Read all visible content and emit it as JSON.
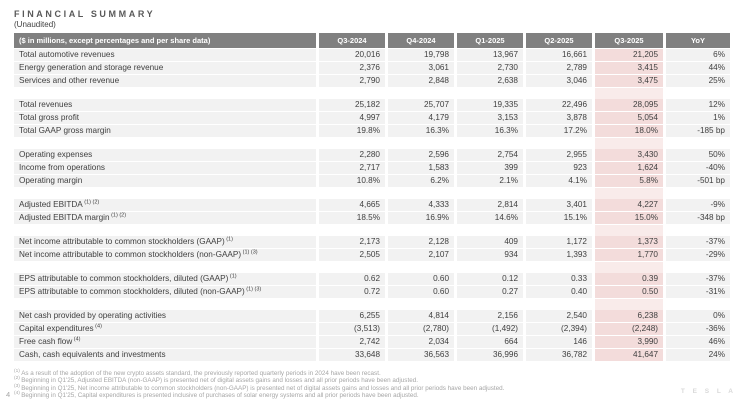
{
  "header": {
    "title": "FINANCIAL SUMMARY",
    "subtitle": "(Unaudited)"
  },
  "table": {
    "label_header": "($ in millions, except percentages and per share data)",
    "columns": [
      "Q3-2024",
      "Q4-2024",
      "Q1-2025",
      "Q2-2025",
      "Q3-2025",
      "YoY"
    ],
    "highlight_column": "Q3-2025",
    "sections": [
      {
        "rows": [
          {
            "label": "Total automotive revenues",
            "sup": "",
            "values": [
              "20,016",
              "19,798",
              "13,967",
              "16,661",
              "21,205",
              "6%"
            ]
          },
          {
            "label": "Energy generation and storage revenue",
            "sup": "",
            "values": [
              "2,376",
              "3,061",
              "2,730",
              "2,789",
              "3,415",
              "44%"
            ]
          },
          {
            "label": "Services and other revenue",
            "sup": "",
            "values": [
              "2,790",
              "2,848",
              "2,638",
              "3,046",
              "3,475",
              "25%"
            ]
          }
        ]
      },
      {
        "rows": [
          {
            "label": "Total revenues",
            "sup": "",
            "values": [
              "25,182",
              "25,707",
              "19,335",
              "22,496",
              "28,095",
              "12%"
            ]
          },
          {
            "label": "Total gross profit",
            "sup": "",
            "values": [
              "4,997",
              "4,179",
              "3,153",
              "3,878",
              "5,054",
              "1%"
            ]
          },
          {
            "label": "Total GAAP gross margin",
            "sup": "",
            "values": [
              "19.8%",
              "16.3%",
              "16.3%",
              "17.2%",
              "18.0%",
              "-185 bp"
            ]
          }
        ]
      },
      {
        "rows": [
          {
            "label": "Operating expenses",
            "sup": "",
            "values": [
              "2,280",
              "2,596",
              "2,754",
              "2,955",
              "3,430",
              "50%"
            ]
          },
          {
            "label": "Income from operations",
            "sup": "",
            "values": [
              "2,717",
              "1,583",
              "399",
              "923",
              "1,624",
              "-40%"
            ]
          },
          {
            "label": "Operating margin",
            "sup": "",
            "values": [
              "10.8%",
              "6.2%",
              "2.1%",
              "4.1%",
              "5.8%",
              "-501 bp"
            ]
          }
        ]
      },
      {
        "rows": [
          {
            "label": "Adjusted EBITDA",
            "sup": "(1) (2)",
            "values": [
              "4,665",
              "4,333",
              "2,814",
              "3,401",
              "4,227",
              "-9%"
            ]
          },
          {
            "label": "Adjusted EBITDA margin",
            "sup": "(1) (2)",
            "values": [
              "18.5%",
              "16.9%",
              "14.6%",
              "15.1%",
              "15.0%",
              "-348 bp"
            ]
          }
        ]
      },
      {
        "rows": [
          {
            "label": "Net income attributable to common stockholders (GAAP)",
            "sup": "(1)",
            "values": [
              "2,173",
              "2,128",
              "409",
              "1,172",
              "1,373",
              "-37%"
            ]
          },
          {
            "label": "Net income attributable to common stockholders (non-GAAP)",
            "sup": "(1) (3)",
            "values": [
              "2,505",
              "2,107",
              "934",
              "1,393",
              "1,770",
              "-29%"
            ]
          }
        ]
      },
      {
        "rows": [
          {
            "label": "EPS attributable to common stockholders, diluted (GAAP)",
            "sup": "(1)",
            "values": [
              "0.62",
              "0.60",
              "0.12",
              "0.33",
              "0.39",
              "-37%"
            ]
          },
          {
            "label": "EPS attributable to common stockholders, diluted (non-GAAP)",
            "sup": "(1) (3)",
            "values": [
              "0.72",
              "0.60",
              "0.27",
              "0.40",
              "0.50",
              "-31%"
            ]
          }
        ]
      },
      {
        "rows": [
          {
            "label": "Net cash provided by operating activities",
            "sup": "",
            "values": [
              "6,255",
              "4,814",
              "2,156",
              "2,540",
              "6,238",
              "0%"
            ]
          },
          {
            "label": "Capital expenditures",
            "sup": "(4)",
            "values": [
              "(3,513)",
              "(2,780)",
              "(1,492)",
              "(2,394)",
              "(2,248)",
              "-36%"
            ]
          },
          {
            "label": "Free cash flow",
            "sup": "(4)",
            "values": [
              "2,742",
              "2,034",
              "664",
              "146",
              "3,990",
              "46%"
            ]
          },
          {
            "label": "Cash, cash equivalents and investments",
            "sup": "",
            "values": [
              "33,648",
              "36,563",
              "36,996",
              "36,782",
              "41,647",
              "24%"
            ]
          }
        ]
      }
    ]
  },
  "footnotes": [
    {
      "sup": "(1)",
      "text": "As a result of the adoption of the new crypto assets standard, the previously reported quarterly periods in 2024 have been recast."
    },
    {
      "sup": "(2)",
      "text": "Beginning in Q1'25, Adjusted EBITDA (non-GAAP) is presented net of digital assets gains and losses and all prior periods have been adjusted."
    },
    {
      "sup": "(3)",
      "text": "Beginning in Q1'25, Net income attributable to common stockholders (non-GAAP) is presented net of digital assets gains and losses and all prior periods have been adjusted."
    },
    {
      "sup": "(4)",
      "text": "Beginning in Q1'25, Capital expenditures is presented inclusive of purchases of solar energy systems and all prior periods have been adjusted."
    }
  ],
  "footer": {
    "page_number": "4",
    "watermark": "T E S L A"
  },
  "colors": {
    "header_bg": "#808080",
    "header_text": "#ffffff",
    "row_bg": "#f2f2f2",
    "highlight_bg": "#f3dcdb",
    "highlight_gap_bg": "#f9ebea",
    "title_text": "#595959",
    "body_text": "#404040",
    "footnote_text": "#a6a6a6"
  }
}
